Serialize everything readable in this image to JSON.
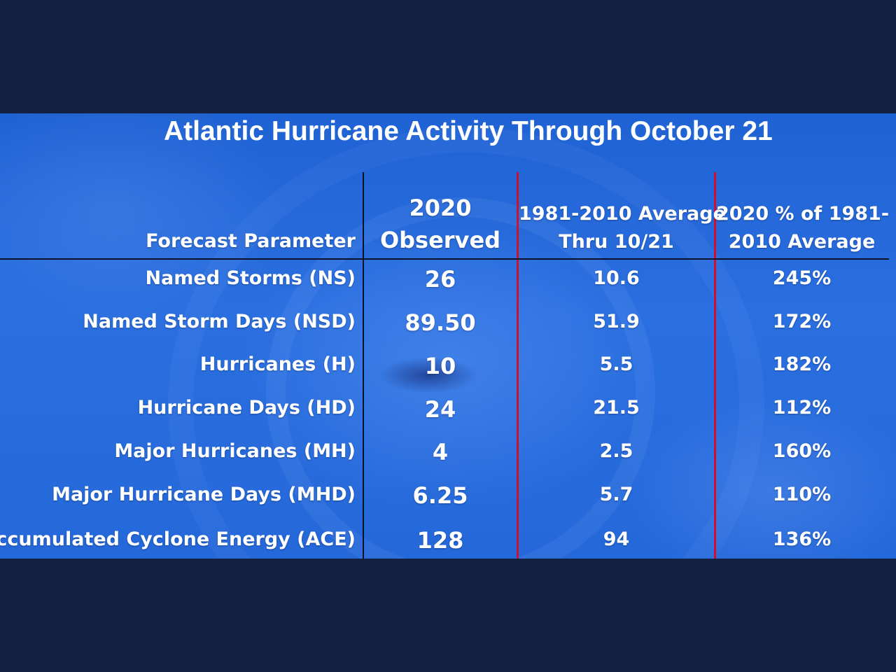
{
  "chart_data": {
    "type": "table",
    "title": "Atlantic Hurricane Activity Through October 21",
    "columns": [
      "Forecast Parameter",
      "2020 Observed",
      "1981-2010 Average Thru 10/21",
      "2020 % of 1981-2010 Average"
    ],
    "header": {
      "param": "Forecast Parameter",
      "observed_line1": "2020",
      "observed_line2": "Observed",
      "average_line1": "1981-2010 Average",
      "average_line2": "Thru 10/21",
      "percent_line1": "2020 % of 1981-",
      "percent_line2": "2010 Average"
    },
    "rows": [
      {
        "param": "Named Storms (NS)",
        "observed": "26",
        "average": "10.6",
        "percent": "245%"
      },
      {
        "param": "Named Storm Days (NSD)",
        "observed": "89.50",
        "average": "51.9",
        "percent": "172%"
      },
      {
        "param": "Hurricanes (H)",
        "observed": "10",
        "average": "5.5",
        "percent": "182%"
      },
      {
        "param": "Hurricane Days (HD)",
        "observed": "24",
        "average": "21.5",
        "percent": "112%"
      },
      {
        "param": "Major Hurricanes (MH)",
        "observed": "4",
        "average": "2.5",
        "percent": "160%"
      },
      {
        "param": "Major Hurricane Days (MHD)",
        "observed": "6.25",
        "average": "5.7",
        "percent": "110%"
      },
      {
        "param": "Accumulated Cyclone Energy (ACE)",
        "observed": "128",
        "average": "94",
        "percent": "136%"
      }
    ]
  },
  "colors": {
    "backdrop": "#12213f",
    "slide_blue": "#2468da",
    "text": "#ffffff",
    "divider_red": "#d0102a",
    "divider_dark": "#0b1226"
  }
}
